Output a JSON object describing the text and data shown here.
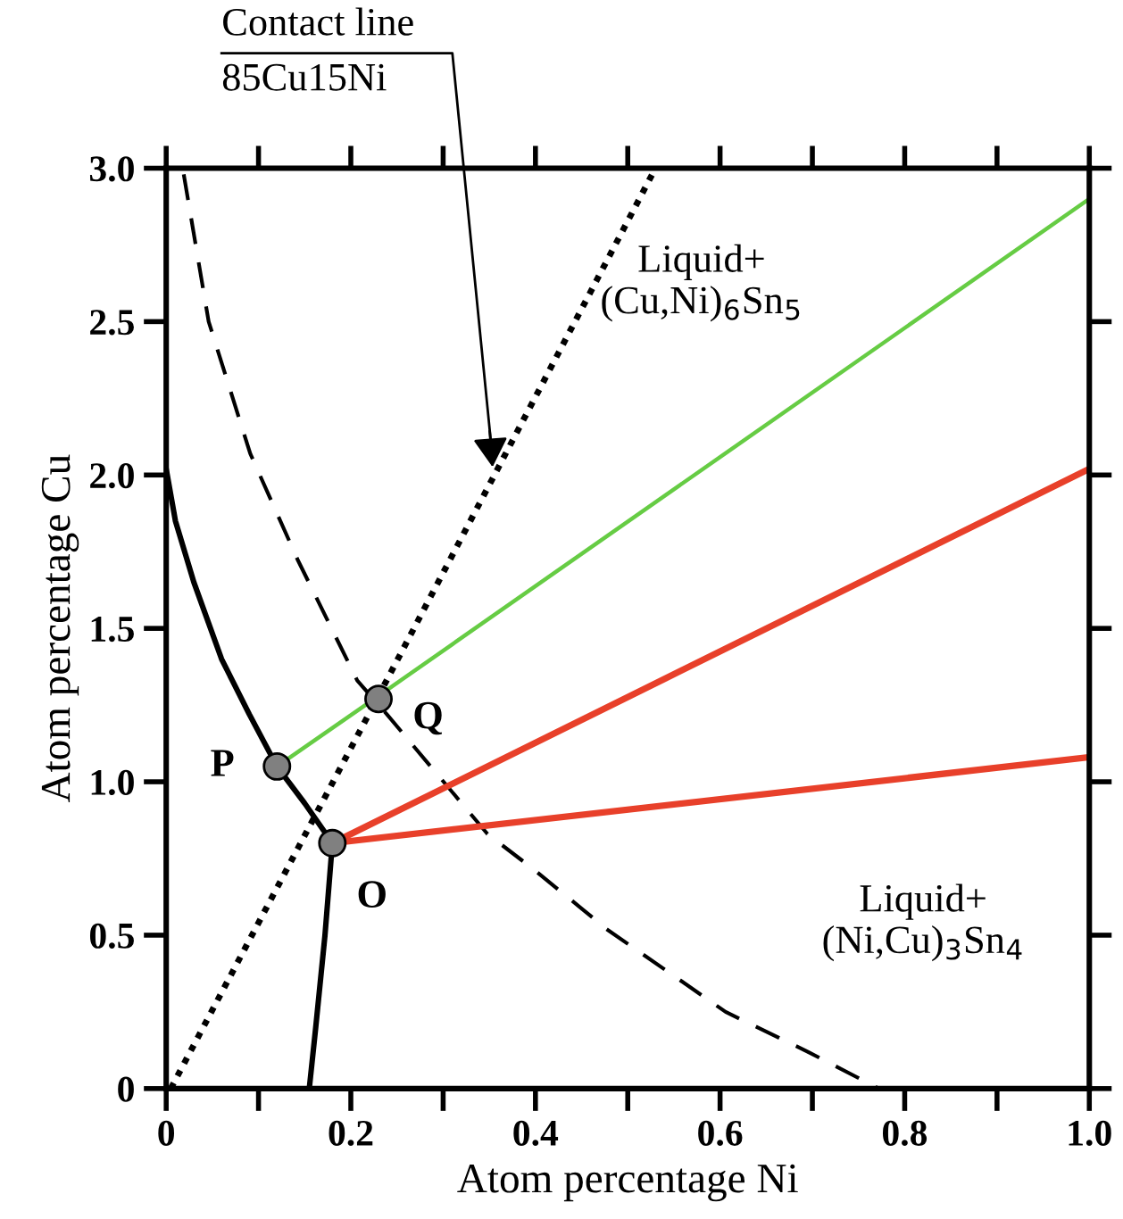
{
  "chart_data": {
    "type": "line",
    "xlabel": "Atom percentage Ni",
    "ylabel": "Atom percentage Cu",
    "xlim": [
      0,
      1.0
    ],
    "ylim": [
      0,
      3.0
    ],
    "xticks": [
      0,
      {
        "value": 0.1,
        "label": null
      },
      0.2,
      {
        "value": 0.3,
        "label": null
      },
      0.4,
      {
        "value": 0.5,
        "label": null
      },
      0.6,
      {
        "value": 0.7,
        "label": null
      },
      0.8,
      {
        "value": 0.9,
        "label": null
      },
      {
        "value": 1.0,
        "label": "1.0"
      }
    ],
    "yticks": [
      0,
      0.5,
      {
        "value": 1.0,
        "label": "1.0"
      },
      1.5,
      {
        "value": 2.0,
        "label": "2.0"
      },
      2.5,
      {
        "value": 3.0,
        "label": "3.0"
      }
    ],
    "grid": false,
    "legend": false,
    "series": [
      {
        "color": "#000000",
        "line_style": "solid",
        "x": [
          0,
          0.01,
          0.03,
          0.06,
          0.09,
          0.12,
          0.15,
          0.18
        ],
        "values": [
          2.02,
          1.85,
          1.65,
          1.4,
          1.22,
          1.05,
          0.93,
          0.8
        ]
      },
      {
        "color": "#000000",
        "line_style": "solid",
        "x": [
          0.18,
          0.172,
          0.162,
          0.155
        ],
        "values": [
          0.8,
          0.5,
          0.2,
          0
        ]
      },
      {
        "color": "#000000",
        "line_style": "dashed",
        "x": [
          0.019,
          0.046,
          0.091,
          0.143,
          0.207,
          0.239,
          0.348,
          0.4,
          0.477,
          0.606,
          0.695,
          0.772
        ],
        "values": [
          2.98,
          2.5,
          2.07,
          1.72,
          1.33,
          1.22,
          0.83,
          0.71,
          0.52,
          0.25,
          0.12,
          0
        ]
      },
      {
        "color": "#000000",
        "line_style": "dotted",
        "x": [
          0.005,
          0.23,
          0.53
        ],
        "values": [
          0,
          1.28,
          3.0
        ]
      },
      {
        "color": "#66cc44",
        "line_style": "solid",
        "x": [
          0.12,
          0.23,
          1.0
        ],
        "values": [
          1.05,
          1.28,
          2.9
        ]
      },
      {
        "color": "#e8402a",
        "line_style": "solid",
        "x": [
          0.18,
          1.0
        ],
        "values": [
          0.8,
          2.02
        ]
      },
      {
        "color": "#e8402a",
        "line_style": "solid",
        "x": [
          0.18,
          1.0
        ],
        "values": [
          0.8,
          1.08
        ]
      },
      {
        "type": "scatter",
        "color": "#808080",
        "marker": "circle",
        "x": [
          0.12,
          0.23,
          0.18
        ],
        "values": [
          1.05,
          1.27,
          0.8
        ]
      }
    ],
    "annotations": [
      {
        "text": "P",
        "x": 0.12,
        "y": 1.05
      },
      {
        "text": "Q",
        "x": 0.23,
        "y": 1.27
      },
      {
        "text": "O",
        "x": 0.18,
        "y": 0.8
      },
      "Liquid+\n(Cu,Ni)$_{6}$Sn$_{5}$",
      "Liquid+\n(Ni,Cu)$_{3}$Sn$_{4}$",
      "Contact line\n85Cu15Ni"
    ]
  }
}
